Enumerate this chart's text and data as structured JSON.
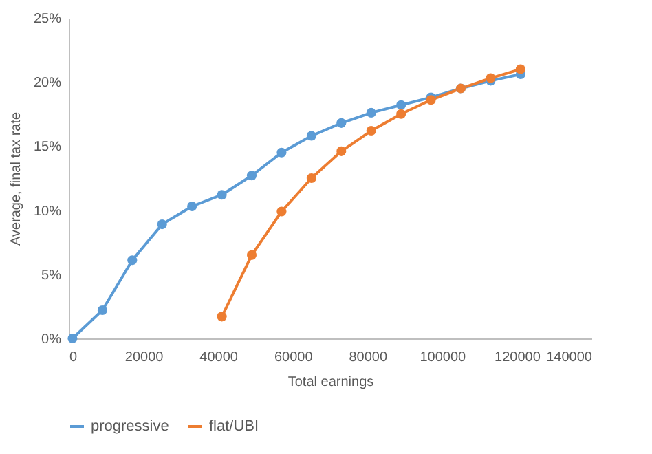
{
  "chart_data": {
    "type": "line",
    "xlabel": "Total earnings",
    "ylabel": "Average, final tax rate",
    "x": [
      1000,
      9000,
      17000,
      25000,
      33000,
      41000,
      49000,
      57000,
      65000,
      73000,
      81000,
      89000,
      97000,
      105000,
      113000,
      121000
    ],
    "series": [
      {
        "name": "progressive",
        "color": "#5b9bd5",
        "values": [
          0,
          2.2,
          6.1,
          8.9,
          10.3,
          11.2,
          12.7,
          14.5,
          15.8,
          16.8,
          17.6,
          18.2,
          18.8,
          19.5,
          20.1,
          20.6
        ]
      },
      {
        "name": "flat/UBI",
        "color": "#ed7d31",
        "values": [
          null,
          null,
          null,
          null,
          null,
          1.7,
          6.5,
          9.9,
          12.5,
          14.6,
          16.2,
          17.5,
          18.6,
          19.5,
          20.3,
          21.0
        ]
      }
    ],
    "xlim": [
      0,
      140000
    ],
    "xticks": [
      0,
      20000,
      40000,
      60000,
      80000,
      100000,
      120000,
      140000
    ],
    "ylim": [
      0,
      25
    ],
    "yticks": [
      {
        "value": 0,
        "label": "0%"
      },
      {
        "value": 5,
        "label": "5%"
      },
      {
        "value": 10,
        "label": "10%"
      },
      {
        "value": 15,
        "label": "15%"
      },
      {
        "value": 20,
        "label": "20%"
      },
      {
        "value": 25,
        "label": "25%"
      }
    ],
    "grid": false,
    "legend": "bottom",
    "marker": "circle",
    "line_style": "solid"
  }
}
